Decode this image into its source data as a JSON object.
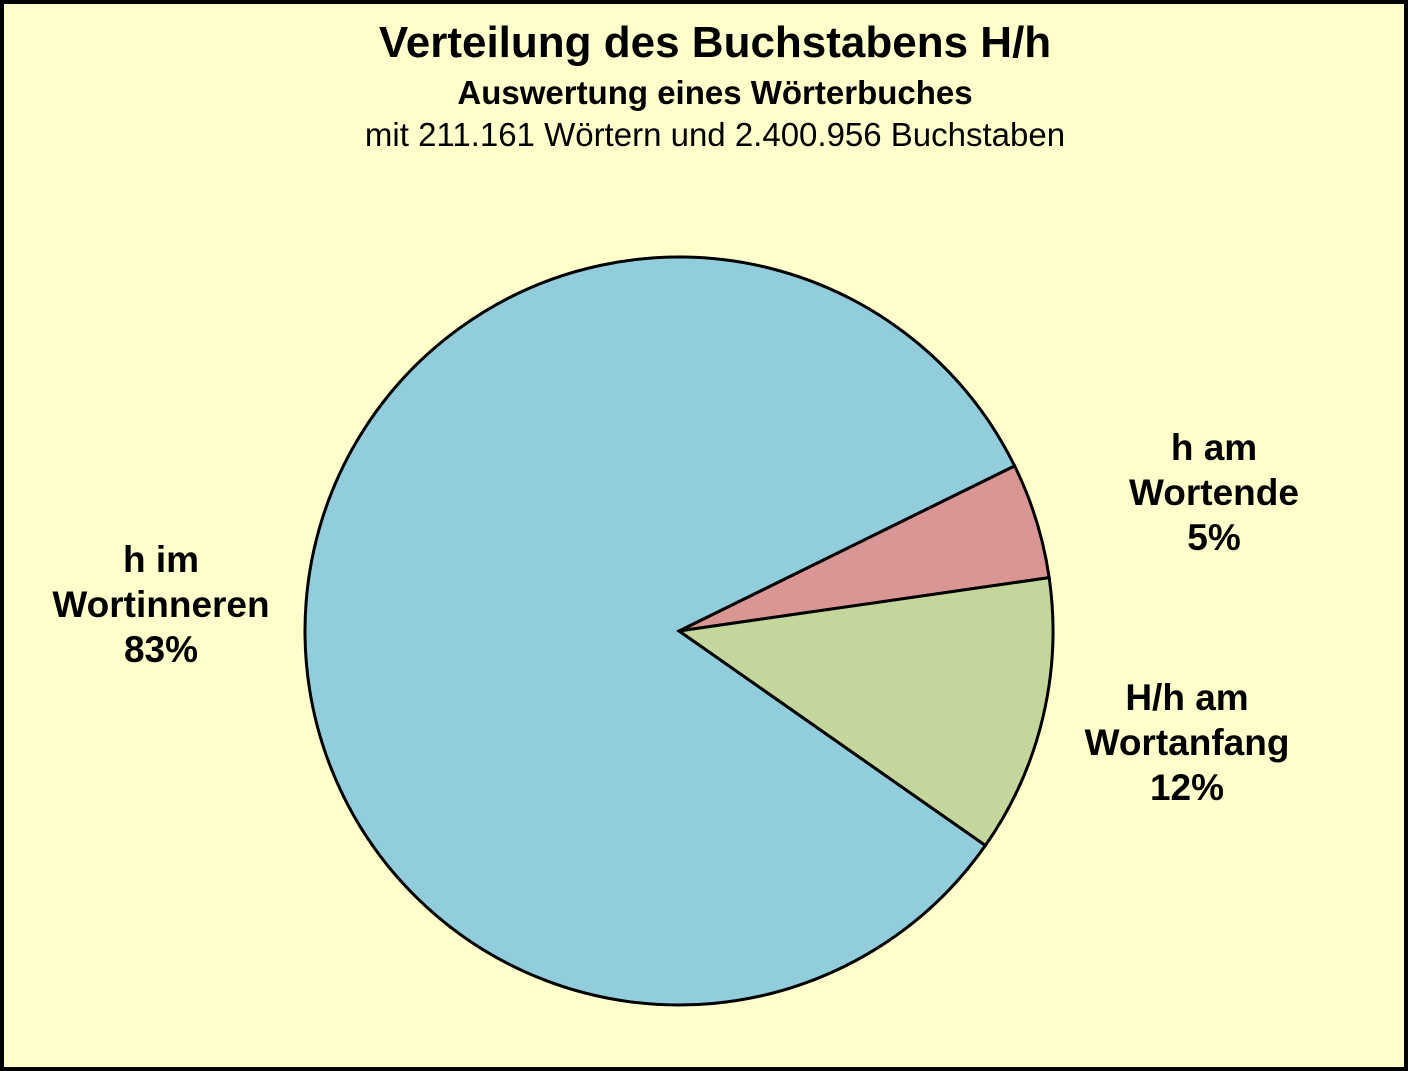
{
  "chart_data": {
    "type": "pie",
    "title": "Verteilung des Buchstabens H/h",
    "subtitle": "Auswertung eines Wörterbuches",
    "description": "mit 211.161 Wörtern und 2.400.956 Buchstaben",
    "words_total": "211.161",
    "letters_total": "2.400.956",
    "slices": [
      {
        "id": "wortende",
        "label": "h am Wortende",
        "percent": 5,
        "color": "#D99694"
      },
      {
        "id": "wortanfang",
        "label": "H/h am Wortanfang",
        "percent": 12,
        "color": "#C3D69B"
      },
      {
        "id": "wortinneren",
        "label": "h im Wortinneren",
        "percent": 83,
        "color": "#92CDDC"
      }
    ],
    "start_angle_deg": -26.2,
    "direction": "clockwise",
    "stroke_color": "#000000",
    "stroke_width": 3,
    "background_color": "#FFFFCC",
    "legend_position": "none",
    "grid": false
  },
  "callouts": {
    "wortinneren": {
      "lines": [
        "h im",
        "Wortinneren",
        "83%"
      ]
    },
    "wortende": {
      "lines": [
        "h am",
        "Wortende",
        "5%"
      ]
    },
    "wortanfang": {
      "lines": [
        "H/h am",
        "Wortanfang",
        "12%"
      ]
    }
  }
}
